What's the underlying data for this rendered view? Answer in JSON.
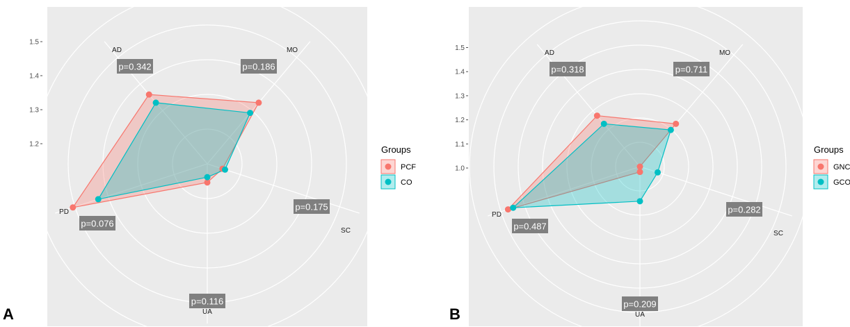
{
  "panel_labels": [
    "A",
    "B"
  ],
  "chart_data": [
    {
      "type": "radar",
      "panel": "A",
      "axes": [
        "AD",
        "MO",
        "SC",
        "UA",
        "PD"
      ],
      "r_ticks": [
        "1.2",
        "1.3",
        "1.4",
        "1.5"
      ],
      "r_range": [
        0.95,
        1.55
      ],
      "grid": true,
      "p_values": [
        "p=0.342",
        "p=0.186",
        "p=0.175",
        "p=0.116",
        "p=0.076"
      ],
      "legend": {
        "title": "Groups",
        "position": "right"
      },
      "series": [
        {
          "name": "PCF",
          "color": "#f8766d",
          "values": [
            1.29,
            1.25,
            1.01,
            1.02,
            1.48
          ]
        },
        {
          "name": "CO",
          "color": "#00bfc4",
          "values": [
            1.25,
            1.2,
            1.02,
            1.0,
            1.38
          ]
        }
      ]
    },
    {
      "type": "radar",
      "panel": "B",
      "axes": [
        "AD",
        "MO",
        "SC",
        "UA",
        "PD"
      ],
      "r_ticks": [
        "1.0",
        "1.1",
        "1.2",
        "1.3",
        "1.4",
        "1.5"
      ],
      "r_range": [
        1.0,
        1.6
      ],
      "grid": true,
      "p_values": [
        "p=0.318",
        "p=0.711",
        "p=0.282",
        "p=0.209",
        "p=0.487"
      ],
      "legend": {
        "title": "Groups",
        "position": "right"
      },
      "series": [
        {
          "name": "GNC",
          "color": "#f8766d",
          "values": [
            1.25,
            1.21,
            1.0,
            1.02,
            1.52
          ]
        },
        {
          "name": "GCO",
          "color": "#00bfc4",
          "values": [
            1.21,
            1.18,
            1.07,
            1.13,
            1.5
          ]
        }
      ]
    }
  ]
}
